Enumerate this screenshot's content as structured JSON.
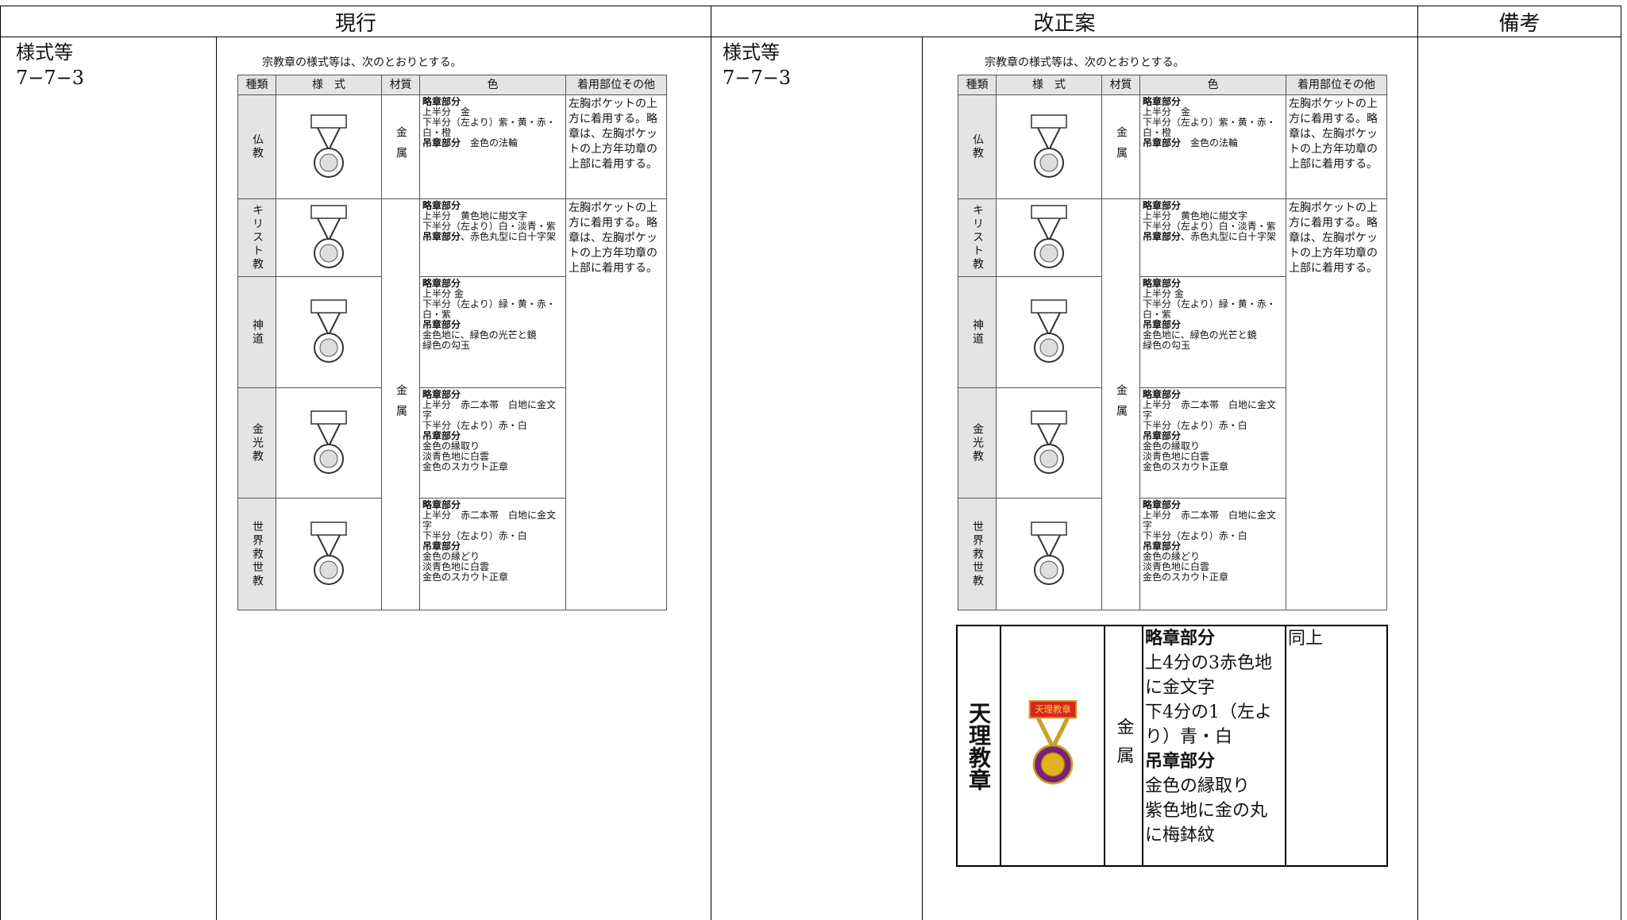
{
  "header": {
    "current": "現行",
    "proposed": "改正案",
    "remarks": "備考"
  },
  "current": {
    "label": "様式等",
    "ref": "7−7−3",
    "table": {
      "intro": "宗教章の様式等は、次のとおりとする。",
      "columns": [
        "種類",
        "様　式",
        "材質",
        "色",
        "着用部位その他"
      ],
      "shared_material": "金属",
      "shared_wear": "左胸ポケットの上方に着用する。略章は、左胸ポケットの上方年功章の上部に着用する。",
      "rows": [
        {
          "kind": "仏教",
          "material": "金属",
          "color": [
            {
              "head": "略章部分",
              "lines": [
                "上半分　金",
                "下半分（左より）紫・黄・赤・白・橙"
              ]
            },
            {
              "head": "吊章部分",
              "after": "　金色の法輪"
            }
          ],
          "wear": "左胸ポケットの上方に着用する。略章は、左胸ポケットの上方年功章の上部に着用する。"
        },
        {
          "kind": "キリスト教",
          "color": [
            {
              "head": "略章部分",
              "lines": [
                "上半分　黄色地に紺文字",
                "下半分（左より）白・淡青・紫"
              ]
            },
            {
              "head": "吊章部分",
              "after": "、赤色丸型に白十字架"
            }
          ]
        },
        {
          "kind": "神道",
          "color": [
            {
              "head": "略章部分",
              "lines": [
                "上半分 金",
                "下半分（左より）緑・黄・赤・白・紫"
              ]
            },
            {
              "head": "吊章部分",
              "lines": [
                "金色地に、緑色の光芒と鏡",
                "緑色の勾玉"
              ]
            }
          ]
        },
        {
          "kind": "金光教",
          "color": [
            {
              "head": "略章部分",
              "lines": [
                "上半分　赤二本帯　白地に金文字",
                "下半分（左より）赤・白"
              ]
            },
            {
              "head": "吊章部分",
              "lines": [
                "金色の縁取り",
                "淡青色地に白雲",
                "金色のスカウト正章"
              ]
            }
          ]
        },
        {
          "kind": "世界救世教",
          "color": [
            {
              "head": "略章部分",
              "lines": [
                "上半分　赤二本帯　白地に金文字",
                "下半分（左より）赤・白"
              ]
            },
            {
              "head": "吊章部分",
              "lines": [
                "金色の縁どり",
                "淡青色地に白雲",
                "金色のスカウト正章"
              ]
            }
          ]
        }
      ]
    }
  },
  "proposed": {
    "label": "様式等",
    "ref": "7−7−3",
    "table": {
      "intro": "宗教章の様式等は、次のとおりとする。",
      "columns": [
        "種類",
        "様　式",
        "材質",
        "色",
        "着用部位その他"
      ],
      "shared_material": "金属",
      "shared_wear": "左胸ポケットの上方に着用する。略章は、左胸ポケットの上方年功章の上部に着用する。",
      "rows": [
        {
          "kind": "仏教",
          "material": "金属",
          "color": [
            {
              "head": "略章部分",
              "lines": [
                "上半分　金",
                "下半分（左より）紫・黄・赤・白・橙"
              ]
            },
            {
              "head": "吊章部分",
              "after": "　金色の法輪"
            }
          ],
          "wear": "左胸ポケットの上方に着用する。略章は、左胸ポケットの上方年功章の上部に着用する。"
        },
        {
          "kind": "キリスト教",
          "color": [
            {
              "head": "略章部分",
              "lines": [
                "上半分　黄色地に紺文字",
                "下半分（左より）白・淡青・紫"
              ]
            },
            {
              "head": "吊章部分",
              "after": "、赤色丸型に白十字架"
            }
          ]
        },
        {
          "kind": "神道",
          "color": [
            {
              "head": "略章部分",
              "lines": [
                "上半分 金",
                "下半分（左より）緑・黄・赤・白・紫"
              ]
            },
            {
              "head": "吊章部分",
              "lines": [
                "金色地に、緑色の光芒と鏡",
                "緑色の勾玉"
              ]
            }
          ]
        },
        {
          "kind": "金光教",
          "color": [
            {
              "head": "略章部分",
              "lines": [
                "上半分　赤二本帯　白地に金文字",
                "下半分（左より）赤・白"
              ]
            },
            {
              "head": "吊章部分",
              "lines": [
                "金色の縁取り",
                "淡青色地に白雲",
                "金色のスカウト正章"
              ]
            }
          ]
        },
        {
          "kind": "世界救世教",
          "color": [
            {
              "head": "略章部分",
              "lines": [
                "上半分　赤二本帯　白地に金文字",
                "下半分（左より）赤・白"
              ]
            },
            {
              "head": "吊章部分",
              "lines": [
                "金色の縁どり",
                "淡青色地に白雲",
                "金色のスカウト正章"
              ]
            }
          ]
        }
      ]
    },
    "new_row": {
      "kind": "天理教章",
      "badge_text": "天理教章",
      "material": "金属",
      "color": [
        {
          "head": "略章部分",
          "lines": [
            "上4分の3赤色地に金文字",
            "下4分の1（左より）青・白"
          ]
        },
        {
          "head": "吊章部分",
          "lines": [
            "金色の縁取り",
            "紫色地に金の丸に梅鉢紋"
          ]
        }
      ],
      "wear": "同上"
    }
  }
}
